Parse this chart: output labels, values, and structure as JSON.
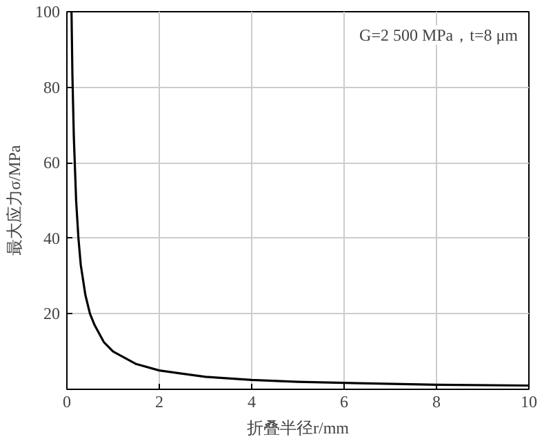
{
  "chart_data": {
    "type": "line",
    "xlabel": "折叠半径r/mm",
    "ylabel": "最大应力σ/MPa",
    "annotations": [
      "G=2 500 MPa，t=8 μm"
    ],
    "x": [
      0.1,
      0.12,
      0.15,
      0.2,
      0.25,
      0.3,
      0.4,
      0.5,
      0.6,
      0.8,
      1,
      1.5,
      2,
      3,
      4,
      5,
      6,
      8,
      10
    ],
    "series": [
      {
        "color": "#000000",
        "values": [
          100,
          83,
          67,
          50,
          40,
          33,
          25,
          20,
          17,
          12.5,
          10,
          6.7,
          5,
          3.3,
          2.5,
          2,
          1.7,
          1.2,
          1
        ]
      }
    ],
    "xlim": [
      0,
      10
    ],
    "ylim": [
      0,
      100
    ],
    "xticks": [
      0,
      2,
      4,
      6,
      8,
      10
    ],
    "yticks": [
      20,
      40,
      60,
      80,
      100
    ],
    "grid": true,
    "line_style": "solid"
  }
}
